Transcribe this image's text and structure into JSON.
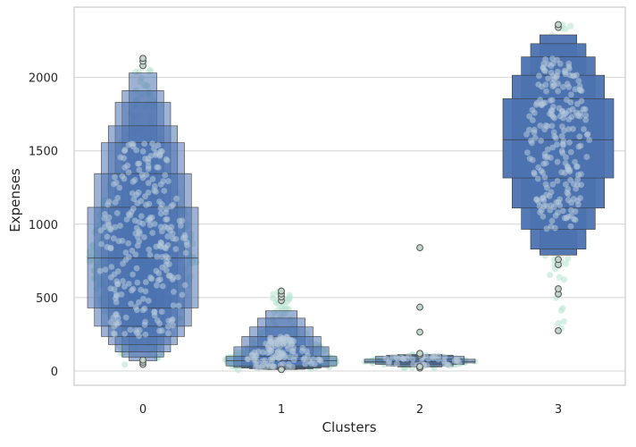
{
  "chart_data": {
    "type": "boxenplot_with_swarm",
    "title": "",
    "xlabel": "Clusters",
    "ylabel": "Expenses",
    "categories": [
      "0",
      "1",
      "2",
      "3"
    ],
    "ylim": [
      -100,
      2470
    ],
    "yticks": [
      0,
      500,
      1000,
      1500,
      2000
    ],
    "grid": "horizontal",
    "colors": {
      "box": "#4c72b0",
      "box_alpha_overlay": "#b6cadb",
      "box_edge": "#3a3a3a",
      "swarm": "#b7e3d0",
      "swarm_overlap": "#a9c5d6",
      "outlier_fill": "#c3d6cc",
      "outlier_edge": "#555555",
      "grid": "#d4d4d4",
      "frame": "#cccccc"
    },
    "groups": [
      {
        "category": "0",
        "median": 770,
        "levels": [
          [
            430,
            1115
          ],
          [
            305,
            1345
          ],
          [
            235,
            1555
          ],
          [
            180,
            1670
          ],
          [
            130,
            1830
          ],
          [
            95,
            1910
          ],
          [
            70,
            2030
          ]
        ],
        "whisker": [
          45,
          2130
        ],
        "outliers": [
          45,
          60,
          75,
          2080,
          2110,
          2130
        ]
      },
      {
        "category": "1",
        "median": 70,
        "levels": [
          [
            35,
            100
          ],
          [
            25,
            165
          ],
          [
            20,
            235
          ],
          [
            15,
            300
          ],
          [
            12,
            360
          ],
          [
            10,
            410
          ]
        ],
        "whisker": [
          8,
          470
        ],
        "outliers": [
          10,
          480,
          505,
          525,
          545
        ]
      },
      {
        "category": "2",
        "median": 65,
        "levels": [
          [
            55,
            80
          ],
          [
            45,
            100
          ],
          [
            35,
            108
          ],
          [
            28,
            112
          ]
        ],
        "whisker": [
          20,
          112
        ],
        "outliers": [
          20,
          30,
          110,
          120,
          265,
          435,
          840
        ]
      },
      {
        "category": "3",
        "median": 1575,
        "levels": [
          [
            1315,
            1855
          ],
          [
            1110,
            2015
          ],
          [
            965,
            2140
          ],
          [
            830,
            2230
          ],
          [
            790,
            2290
          ]
        ],
        "whisker": [
          740,
          2345
        ],
        "outliers": [
          275,
          525,
          560,
          725,
          760,
          2340,
          2360
        ]
      }
    ]
  }
}
